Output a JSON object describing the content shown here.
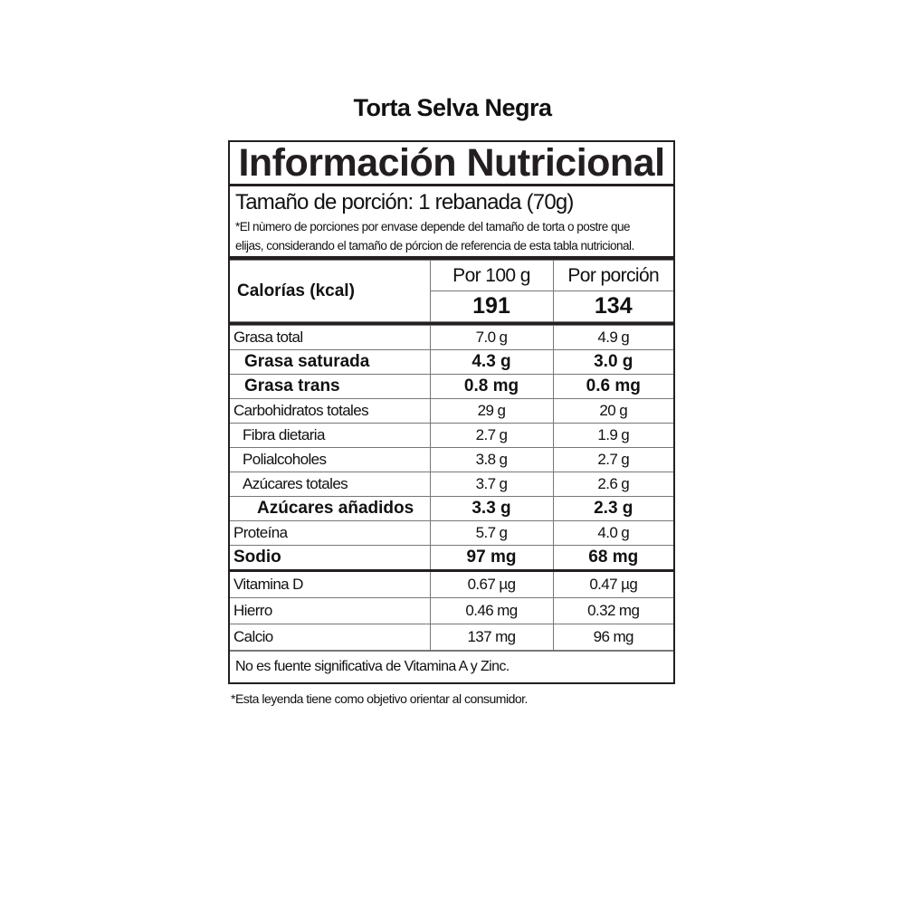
{
  "product_name": "Torta Selva Negra",
  "header": "Información Nutricional",
  "serving": {
    "size": "Tamaño de porción: 1 rebanada (70g)",
    "note_line1": "*El nùmero de porciones por envase depende del tamaño de torta o postre que",
    "note_line2": "elijas, considerando el tamaño de pórcion de referencia de esta tabla nutricional."
  },
  "columns": {
    "per100": "Por 100 g",
    "perPortion": "Por porción"
  },
  "calories": {
    "label": "Calorías (kcal)",
    "per100": "191",
    "perPortion": "134"
  },
  "nutrients": [
    {
      "name": "Grasa total",
      "per100": "7.0 g",
      "perPortion": "4.9 g"
    },
    {
      "name": "Grasa saturada",
      "per100": "4.3 g",
      "perPortion": "3.0 g"
    },
    {
      "name": "Grasa trans",
      "per100": "0.8 mg",
      "perPortion": "0.6 mg"
    },
    {
      "name": "Carbohidratos totales",
      "per100": "29 g",
      "perPortion": "20 g"
    },
    {
      "name": "Fibra dietaria",
      "per100": "2.7 g",
      "perPortion": "1.9 g"
    },
    {
      "name": "Polialcoholes",
      "per100": "3.8 g",
      "perPortion": "2.7 g"
    },
    {
      "name": "Azúcares totales",
      "per100": "3.7 g",
      "perPortion": "2.6 g"
    },
    {
      "name": "Azúcares añadidos",
      "per100": "3.3 g",
      "perPortion": "2.3 g"
    },
    {
      "name": "Proteína",
      "per100": "5.7 g",
      "perPortion": "4.0 g"
    },
    {
      "name": "Sodio",
      "per100": "97 mg",
      "perPortion": "68 mg"
    }
  ],
  "micronutrients": [
    {
      "name": "Vitamina D",
      "per100": "0.67 µg",
      "perPortion": "0.47 µg"
    },
    {
      "name": "Hierro",
      "per100": "0.46 mg",
      "perPortion": "0.32 mg"
    },
    {
      "name": "Calcio",
      "per100": "137 mg",
      "perPortion": "96 mg"
    }
  ],
  "footnote": "No es fuente significativa de Vitamina A y Zinc.",
  "legend": "*Esta leyenda tiene como objetivo orientar al consumidor."
}
